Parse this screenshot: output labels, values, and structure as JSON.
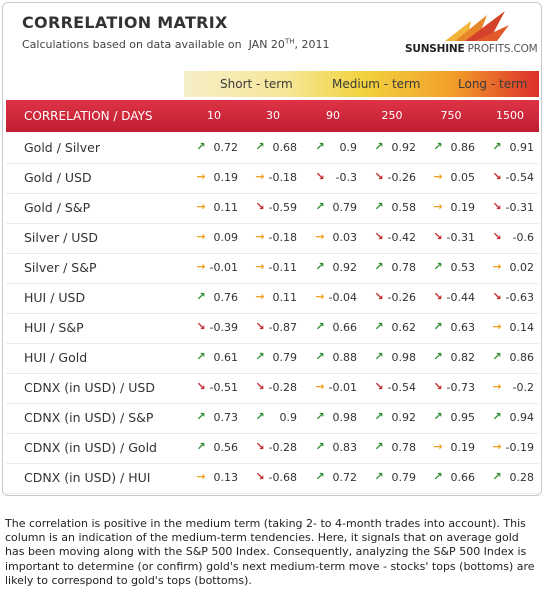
{
  "title": "CORRELATION MATRIX",
  "subtitle": {
    "prefix": "Calculations based on data available on",
    "date_main": "JAN 20",
    "date_sup": "TH",
    "date_year": ", 2011"
  },
  "logo": {
    "bold": "SUNSHINE",
    "light": " PROFITS.COM"
  },
  "colors": {
    "header_red": "#c7202f",
    "up": "#2e8c2e",
    "down": "#c0282c",
    "side": "#f0a020"
  },
  "terms": [
    "Short - term",
    "Medium - term",
    "Long - term"
  ],
  "header_label": "CORRELATION / DAYS",
  "days": [
    "10",
    "30",
    "90",
    "250",
    "750",
    "1500"
  ],
  "rows": [
    {
      "label": "Gold / Silver",
      "cells": [
        {
          "arrow": "up",
          "value": "0.72"
        },
        {
          "arrow": "up",
          "value": "0.68"
        },
        {
          "arrow": "up",
          "value": "0.9"
        },
        {
          "arrow": "up",
          "value": "0.92"
        },
        {
          "arrow": "up",
          "value": "0.86"
        },
        {
          "arrow": "up",
          "value": "0.91"
        }
      ]
    },
    {
      "label": "Gold / USD",
      "cells": [
        {
          "arrow": "side",
          "value": "0.19"
        },
        {
          "arrow": "side",
          "value": "-0.18"
        },
        {
          "arrow": "down",
          "value": "-0.3"
        },
        {
          "arrow": "down",
          "value": "-0.26"
        },
        {
          "arrow": "side",
          "value": "0.05"
        },
        {
          "arrow": "down",
          "value": "-0.54"
        }
      ]
    },
    {
      "label": "Gold / S&P",
      "cells": [
        {
          "arrow": "side",
          "value": "0.11"
        },
        {
          "arrow": "down",
          "value": "-0.59"
        },
        {
          "arrow": "up",
          "value": "0.79"
        },
        {
          "arrow": "up",
          "value": "0.58"
        },
        {
          "arrow": "side",
          "value": "0.19"
        },
        {
          "arrow": "down",
          "value": "-0.31"
        }
      ]
    },
    {
      "label": "Silver / USD",
      "cells": [
        {
          "arrow": "side",
          "value": "0.09"
        },
        {
          "arrow": "side",
          "value": "-0.18"
        },
        {
          "arrow": "side",
          "value": "0.03"
        },
        {
          "arrow": "down",
          "value": "-0.42"
        },
        {
          "arrow": "down",
          "value": "-0.31"
        },
        {
          "arrow": "down",
          "value": "-0.6"
        }
      ]
    },
    {
      "label": "Silver / S&P",
      "cells": [
        {
          "arrow": "side",
          "value": "-0.01"
        },
        {
          "arrow": "side",
          "value": "-0.11"
        },
        {
          "arrow": "up",
          "value": "0.92"
        },
        {
          "arrow": "up",
          "value": "0.78"
        },
        {
          "arrow": "up",
          "value": "0.53"
        },
        {
          "arrow": "side",
          "value": "0.02"
        }
      ]
    },
    {
      "label": "HUI / USD",
      "cells": [
        {
          "arrow": "up",
          "value": "0.76"
        },
        {
          "arrow": "side",
          "value": "0.11"
        },
        {
          "arrow": "side",
          "value": "-0.04"
        },
        {
          "arrow": "down",
          "value": "-0.26"
        },
        {
          "arrow": "down",
          "value": "-0.44"
        },
        {
          "arrow": "down",
          "value": "-0.63"
        }
      ]
    },
    {
      "label": "HUI / S&P",
      "cells": [
        {
          "arrow": "down",
          "value": "-0.39"
        },
        {
          "arrow": "down",
          "value": "-0.87"
        },
        {
          "arrow": "up",
          "value": "0.66"
        },
        {
          "arrow": "up",
          "value": "0.62"
        },
        {
          "arrow": "up",
          "value": "0.63"
        },
        {
          "arrow": "side",
          "value": "0.14"
        }
      ]
    },
    {
      "label": "HUI / Gold",
      "cells": [
        {
          "arrow": "up",
          "value": "0.61"
        },
        {
          "arrow": "up",
          "value": "0.79"
        },
        {
          "arrow": "up",
          "value": "0.88"
        },
        {
          "arrow": "up",
          "value": "0.98"
        },
        {
          "arrow": "up",
          "value": "0.82"
        },
        {
          "arrow": "up",
          "value": "0.86"
        }
      ]
    },
    {
      "label": "CDNX (in USD) / USD",
      "cells": [
        {
          "arrow": "down",
          "value": "-0.51"
        },
        {
          "arrow": "down",
          "value": "-0.28"
        },
        {
          "arrow": "side",
          "value": "-0.01"
        },
        {
          "arrow": "down",
          "value": "-0.54"
        },
        {
          "arrow": "down",
          "value": "-0.73"
        },
        {
          "arrow": "side",
          "value": "-0.2"
        }
      ]
    },
    {
      "label": "CDNX (in USD) / S&P",
      "cells": [
        {
          "arrow": "up",
          "value": "0.73"
        },
        {
          "arrow": "up",
          "value": "0.9"
        },
        {
          "arrow": "up",
          "value": "0.98"
        },
        {
          "arrow": "up",
          "value": "0.92"
        },
        {
          "arrow": "up",
          "value": "0.95"
        },
        {
          "arrow": "up",
          "value": "0.94"
        }
      ]
    },
    {
      "label": "CDNX (in USD) / Gold",
      "cells": [
        {
          "arrow": "up",
          "value": "0.56"
        },
        {
          "arrow": "down",
          "value": "-0.28"
        },
        {
          "arrow": "up",
          "value": "0.83"
        },
        {
          "arrow": "up",
          "value": "0.78"
        },
        {
          "arrow": "side",
          "value": "0.19"
        },
        {
          "arrow": "side",
          "value": "-0.19"
        }
      ]
    },
    {
      "label": "CDNX (in USD) / HUI",
      "cells": [
        {
          "arrow": "side",
          "value": "0.13"
        },
        {
          "arrow": "down",
          "value": "-0.68"
        },
        {
          "arrow": "up",
          "value": "0.72"
        },
        {
          "arrow": "up",
          "value": "0.79"
        },
        {
          "arrow": "up",
          "value": "0.66"
        },
        {
          "arrow": "up",
          "value": "0.28"
        }
      ]
    }
  ],
  "note": "The correlation is positive in the medium term (taking 2- to 4-month trades into account). This column is an indication of the medium-term tendencies. Here, it signals that on average gold has been moving along with the S&P 500 Index. Consequently, analyzing the S&P 500 Index is important to determine (or confirm) gold's next medium-term move - stocks' tops (bottoms) are likely to correspond to gold's tops (bottoms)."
}
